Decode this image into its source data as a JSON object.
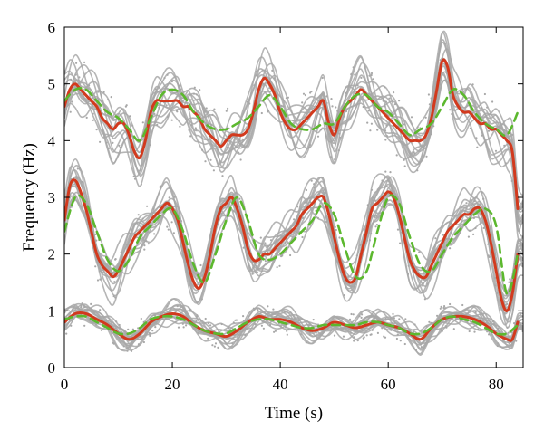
{
  "chart_data": {
    "type": "line",
    "xlabel": "Time (s)",
    "ylabel": "Frequency (Hz)",
    "xlim": [
      0,
      85
    ],
    "ylim": [
      0,
      6
    ],
    "xticks": [
      0,
      20,
      40,
      60,
      80
    ],
    "yticks": [
      0,
      1,
      2,
      3,
      4,
      5,
      6
    ],
    "grid": false,
    "colors": {
      "red": "#d23a1e",
      "green": "#5cb82e",
      "gray": "#a8a8a8"
    },
    "series": [
      {
        "style": "solid-red",
        "x": [
          0,
          1,
          2,
          3,
          4,
          5,
          6,
          7,
          8,
          9,
          10,
          11,
          12,
          13,
          14,
          15,
          16,
          17,
          18,
          19,
          20,
          21,
          22,
          23,
          24,
          25,
          26,
          27,
          28,
          29,
          30,
          31,
          32,
          33,
          34,
          35,
          36,
          37,
          38,
          39,
          40,
          41,
          42,
          43,
          44,
          45,
          46,
          47,
          48,
          49,
          50,
          51,
          52,
          53,
          54,
          55,
          56,
          57,
          58,
          59,
          60,
          61,
          62,
          63,
          64,
          65,
          66,
          67,
          68,
          69,
          70,
          71,
          72,
          73,
          74,
          75,
          76,
          77,
          78,
          79,
          80,
          81,
          82,
          83,
          84
        ],
        "y": [
          4.6,
          4.9,
          5.0,
          4.9,
          4.8,
          4.7,
          4.6,
          4.4,
          4.3,
          4.2,
          4.3,
          4.3,
          4.1,
          3.8,
          3.7,
          4.0,
          4.5,
          4.7,
          4.7,
          4.7,
          4.7,
          4.7,
          4.6,
          4.6,
          4.5,
          4.4,
          4.2,
          4.1,
          4.0,
          3.9,
          4.0,
          4.1,
          4.1,
          4.1,
          4.2,
          4.5,
          4.9,
          5.1,
          5.0,
          4.8,
          4.5,
          4.3,
          4.2,
          4.2,
          4.3,
          4.4,
          4.5,
          4.6,
          4.7,
          4.3,
          4.1,
          4.4,
          4.6,
          4.7,
          4.8,
          4.9,
          4.8,
          4.7,
          4.6,
          4.5,
          4.4,
          4.3,
          4.2,
          4.1,
          4.0,
          4.0,
          4.0,
          4.1,
          4.4,
          4.9,
          5.4,
          5.3,
          4.8,
          4.6,
          4.5,
          4.5,
          4.4,
          4.3,
          4.3,
          4.2,
          4.2,
          4.1,
          4.0,
          3.8,
          2.8
        ]
      },
      {
        "style": "dashed-green",
        "x": [
          0,
          2,
          4,
          6,
          8,
          10,
          12,
          14,
          16,
          18,
          20,
          22,
          24,
          26,
          28,
          30,
          32,
          34,
          36,
          38,
          40,
          42,
          44,
          46,
          48,
          50,
          52,
          54,
          56,
          58,
          60,
          62,
          64,
          66,
          68,
          70,
          72,
          74,
          76,
          78,
          80,
          82,
          84
        ],
        "y": [
          4.7,
          4.9,
          4.9,
          4.7,
          4.5,
          4.4,
          4.2,
          4.0,
          4.4,
          4.8,
          4.9,
          4.8,
          4.5,
          4.3,
          4.2,
          4.2,
          4.3,
          4.4,
          4.6,
          4.8,
          4.6,
          4.3,
          4.2,
          4.2,
          4.3,
          4.3,
          4.6,
          4.8,
          4.8,
          4.6,
          4.5,
          4.3,
          4.1,
          4.2,
          4.3,
          4.6,
          4.9,
          4.8,
          4.5,
          4.3,
          4.2,
          4.1,
          4.5
        ]
      },
      {
        "style": "solid-red",
        "x": [
          0,
          1,
          2,
          3,
          4,
          5,
          6,
          7,
          8,
          9,
          10,
          11,
          12,
          13,
          14,
          15,
          16,
          17,
          18,
          19,
          20,
          21,
          22,
          23,
          24,
          25,
          26,
          27,
          28,
          29,
          30,
          31,
          32,
          33,
          34,
          35,
          36,
          37,
          38,
          39,
          40,
          41,
          42,
          43,
          44,
          45,
          46,
          47,
          48,
          49,
          50,
          51,
          52,
          53,
          54,
          55,
          56,
          57,
          58,
          59,
          60,
          61,
          62,
          63,
          64,
          65,
          66,
          67,
          68,
          69,
          70,
          71,
          72,
          73,
          74,
          75,
          76,
          77,
          78,
          79,
          80,
          81,
          82,
          83,
          84
        ],
        "y": [
          2.6,
          3.2,
          3.3,
          3.1,
          2.8,
          2.4,
          2.0,
          1.8,
          1.7,
          1.6,
          1.7,
          1.9,
          2.1,
          2.3,
          2.4,
          2.5,
          2.6,
          2.7,
          2.8,
          2.9,
          2.8,
          2.6,
          2.2,
          1.8,
          1.5,
          1.4,
          1.6,
          2.0,
          2.5,
          2.8,
          2.9,
          3.0,
          2.8,
          2.5,
          2.1,
          1.9,
          1.9,
          2.0,
          2.0,
          2.1,
          2.2,
          2.3,
          2.4,
          2.5,
          2.7,
          2.8,
          2.9,
          3.0,
          3.0,
          2.7,
          2.3,
          1.9,
          1.6,
          1.5,
          1.6,
          2.0,
          2.4,
          2.8,
          2.9,
          3.0,
          3.1,
          3.0,
          2.7,
          2.3,
          1.9,
          1.7,
          1.6,
          1.6,
          1.8,
          2.0,
          2.2,
          2.4,
          2.5,
          2.6,
          2.7,
          2.7,
          2.8,
          2.8,
          2.6,
          2.2,
          1.7,
          1.2,
          1.0,
          1.3,
          2.0
        ]
      },
      {
        "style": "dashed-green",
        "x": [
          0,
          2,
          4,
          6,
          8,
          10,
          12,
          14,
          16,
          18,
          20,
          22,
          24,
          26,
          28,
          30,
          32,
          34,
          36,
          38,
          40,
          42,
          44,
          46,
          48,
          50,
          52,
          54,
          56,
          58,
          60,
          62,
          64,
          66,
          68,
          70,
          72,
          74,
          76,
          78,
          80,
          82,
          84
        ],
        "y": [
          2.4,
          3.0,
          2.9,
          2.4,
          1.9,
          1.7,
          1.9,
          2.3,
          2.5,
          2.7,
          2.8,
          2.4,
          1.8,
          1.5,
          2.0,
          2.6,
          3.0,
          2.6,
          2.0,
          1.9,
          2.0,
          2.2,
          2.4,
          2.6,
          2.9,
          2.7,
          2.1,
          1.6,
          1.7,
          2.4,
          3.0,
          2.9,
          2.3,
          1.8,
          1.7,
          2.0,
          2.3,
          2.5,
          2.7,
          2.8,
          2.5,
          1.3,
          2.0
        ]
      },
      {
        "style": "solid-red",
        "x": [
          0,
          2,
          4,
          6,
          8,
          10,
          12,
          14,
          16,
          18,
          20,
          22,
          24,
          26,
          28,
          30,
          32,
          34,
          36,
          38,
          40,
          42,
          44,
          46,
          48,
          50,
          52,
          54,
          56,
          58,
          60,
          62,
          64,
          66,
          68,
          70,
          72,
          74,
          76,
          78,
          80,
          82,
          83,
          84
        ],
        "y": [
          0.8,
          0.95,
          0.95,
          0.85,
          0.75,
          0.6,
          0.5,
          0.6,
          0.8,
          0.9,
          0.95,
          0.9,
          0.75,
          0.65,
          0.6,
          0.55,
          0.65,
          0.8,
          0.9,
          0.85,
          0.85,
          0.8,
          0.7,
          0.65,
          0.7,
          0.8,
          0.75,
          0.7,
          0.75,
          0.8,
          0.75,
          0.7,
          0.6,
          0.5,
          0.7,
          0.85,
          0.9,
          0.9,
          0.85,
          0.75,
          0.6,
          0.5,
          0.5,
          0.8
        ]
      },
      {
        "style": "dashed-green",
        "x": [
          0,
          2,
          4,
          6,
          8,
          10,
          12,
          14,
          16,
          18,
          20,
          22,
          24,
          26,
          28,
          30,
          32,
          34,
          36,
          38,
          40,
          42,
          44,
          46,
          48,
          50,
          52,
          54,
          56,
          58,
          60,
          62,
          64,
          66,
          68,
          70,
          72,
          74,
          76,
          78,
          80,
          82,
          84
        ],
        "y": [
          0.85,
          0.9,
          0.9,
          0.8,
          0.7,
          0.6,
          0.6,
          0.7,
          0.85,
          0.9,
          0.9,
          0.85,
          0.75,
          0.65,
          0.6,
          0.6,
          0.7,
          0.8,
          0.85,
          0.85,
          0.8,
          0.75,
          0.7,
          0.7,
          0.75,
          0.75,
          0.75,
          0.75,
          0.8,
          0.8,
          0.75,
          0.7,
          0.6,
          0.6,
          0.7,
          0.85,
          0.9,
          0.85,
          0.8,
          0.7,
          0.6,
          0.6,
          0.75
        ]
      }
    ]
  }
}
